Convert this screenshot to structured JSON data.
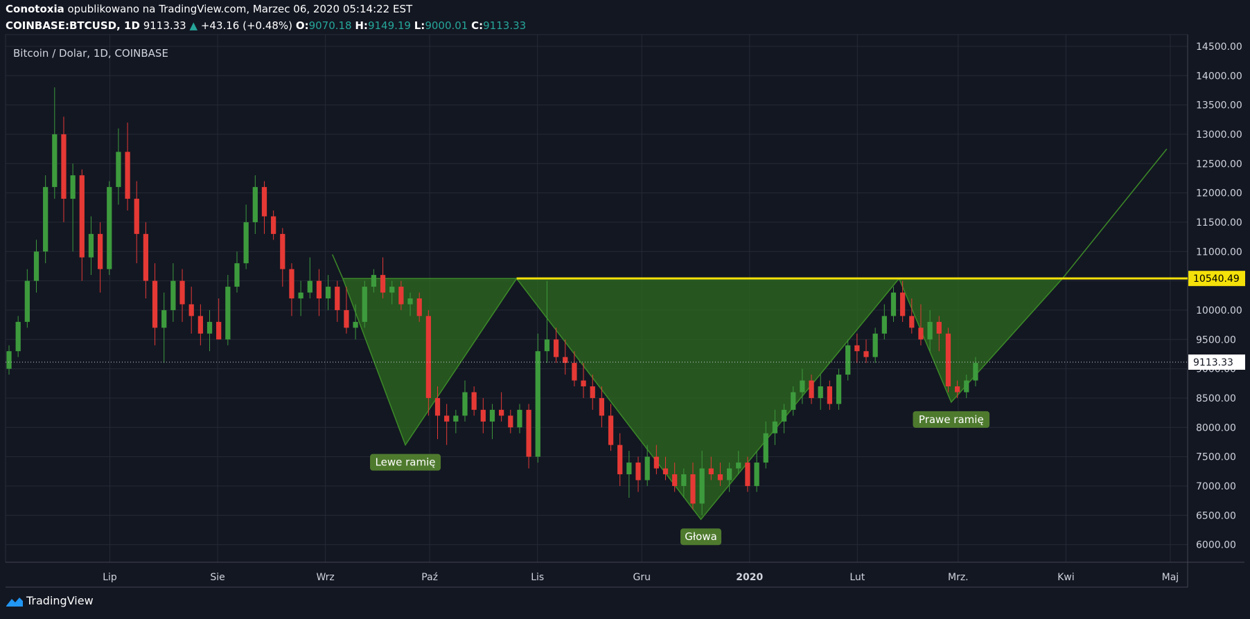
{
  "header": {
    "author": "Conotoxia",
    "published_text": "opublikowano na TradingView.com, Marzec 06, 2020 05:14:22 EST",
    "symbol": "COINBASE:BTCUSD, 1D",
    "last": "9113.33",
    "change_arrow": "▲",
    "change": "+43.16 (+0.48%)",
    "o_label": "O:",
    "o": "9070.18",
    "h_label": "H:",
    "h": "9149.19",
    "l_label": "L:",
    "l": "9000.01",
    "c_label": "C:",
    "c": "9113.33"
  },
  "brand": {
    "name": "TradingView",
    "icon": "tradingview-logo-icon"
  },
  "colors": {
    "background": "#131722",
    "up": "#26a69a",
    "candle_up": "#3d9b3d",
    "candle_down": "#e53935",
    "pattern_fill": "#2e6b1f",
    "neckline": "#f5e10a",
    "label_bg": "#4e7a2e"
  },
  "chart_data": {
    "type": "candlestick",
    "title": "Bitcoin / Dolar, 1D, COINBASE",
    "x_ticks": [
      "Lip",
      "Sie",
      "Wrz",
      "Paź",
      "Lis",
      "Gru",
      "2020",
      "Lut",
      "Mrz.",
      "Kwi",
      "Maj"
    ],
    "y_ticks": [
      "14500.00",
      "14000.00",
      "13500.00",
      "13000.00",
      "12500.00",
      "12000.00",
      "11500.00",
      "11000.00",
      "10500.00",
      "10000.00",
      "9500.00",
      "9000.00",
      "8500.00",
      "8000.00",
      "7500.00",
      "7000.00",
      "6500.00",
      "6000.00"
    ],
    "ylim": [
      5700,
      14700
    ],
    "x_range": [
      "2019-06-01",
      "2020-05-06"
    ],
    "grid": true,
    "price_tags": [
      {
        "label": "10540.49",
        "value": 10540.49,
        "style": "neckline"
      },
      {
        "label": "9113.33",
        "value": 9113.33,
        "style": "last"
      }
    ],
    "pattern": {
      "name": "inverse head and shoulders",
      "labels": [
        {
          "text": "Lewe ramię",
          "date": "2019-09-24",
          "value": 7700
        },
        {
          "text": "Głowa",
          "date": "2019-12-18",
          "value": 6430
        },
        {
          "text": "Prawe ramię",
          "date": "2020-02-28",
          "value": 8430
        }
      ],
      "points": [
        {
          "date": "2019-09-03",
          "value": 10950
        },
        {
          "date": "2019-09-06",
          "value": 10540
        },
        {
          "date": "2019-09-24",
          "value": 7700
        },
        {
          "date": "2019-10-26",
          "value": 10540
        },
        {
          "date": "2019-12-18",
          "value": 6430
        },
        {
          "date": "2020-02-13",
          "value": 10540
        },
        {
          "date": "2020-02-28",
          "value": 8430
        },
        {
          "date": "2020-03-31",
          "value": 10540
        },
        {
          "date": "2020-04-30",
          "value": 12750
        }
      ]
    },
    "series": [
      {
        "type": "candles",
        "ohlc": [
          [
            9000,
            9400,
            8900,
            9300
          ],
          [
            9300,
            9900,
            9200,
            9800
          ],
          [
            9800,
            10700,
            9700,
            10500
          ],
          [
            10500,
            11200,
            10300,
            11000
          ],
          [
            11000,
            12300,
            10800,
            12100
          ],
          [
            12100,
            13800,
            11900,
            13000
          ],
          [
            13000,
            13300,
            11500,
            11900
          ],
          [
            11900,
            12500,
            11000,
            12300
          ],
          [
            12300,
            12400,
            10500,
            10900
          ],
          [
            10900,
            11600,
            10600,
            11300
          ],
          [
            11300,
            11500,
            10300,
            10700
          ],
          [
            10700,
            12200,
            10600,
            12100
          ],
          [
            12100,
            13100,
            11800,
            12700
          ],
          [
            12700,
            13200,
            11700,
            11900
          ],
          [
            11900,
            12200,
            10800,
            11300
          ],
          [
            11300,
            11500,
            10200,
            10500
          ],
          [
            10500,
            10800,
            9400,
            9700
          ],
          [
            9700,
            10300,
            9100,
            10000
          ],
          [
            10000,
            10800,
            9800,
            10500
          ],
          [
            10500,
            10700,
            9800,
            10100
          ],
          [
            10100,
            10400,
            9600,
            9900
          ],
          [
            9900,
            10100,
            9400,
            9600
          ],
          [
            9600,
            10000,
            9300,
            9800
          ],
          [
            9800,
            10200,
            9500,
            9500
          ],
          [
            9500,
            10600,
            9400,
            10400
          ],
          [
            10400,
            11000,
            10300,
            10800
          ],
          [
            10800,
            11800,
            10700,
            11500
          ],
          [
            11500,
            12300,
            11300,
            12100
          ],
          [
            12100,
            12200,
            11300,
            11600
          ],
          [
            11600,
            11700,
            11200,
            11300
          ],
          [
            11300,
            11400,
            10400,
            10700
          ],
          [
            10700,
            10800,
            9900,
            10200
          ],
          [
            10200,
            10500,
            9900,
            10300
          ],
          [
            10300,
            10900,
            10200,
            10500
          ],
          [
            10500,
            10700,
            9900,
            10200
          ],
          [
            10200,
            10600,
            10000,
            10400
          ],
          [
            10400,
            10500,
            9800,
            10000
          ],
          [
            10000,
            10400,
            9600,
            9700
          ],
          [
            9700,
            10100,
            9500,
            9800
          ],
          [
            9800,
            10500,
            9700,
            10400
          ],
          [
            10400,
            10700,
            10300,
            10600
          ],
          [
            10600,
            10900,
            10200,
            10300
          ],
          [
            10300,
            10500,
            10100,
            10400
          ],
          [
            10400,
            10500,
            10000,
            10100
          ],
          [
            10100,
            10300,
            9900,
            10200
          ],
          [
            10200,
            10300,
            9800,
            9900
          ],
          [
            9900,
            10000,
            8200,
            8500
          ],
          [
            8500,
            8700,
            7800,
            8200
          ],
          [
            8200,
            8400,
            7700,
            8100
          ],
          [
            8100,
            8300,
            7900,
            8200
          ],
          [
            8200,
            8800,
            8100,
            8600
          ],
          [
            8600,
            8700,
            8200,
            8300
          ],
          [
            8300,
            8500,
            7900,
            8100
          ],
          [
            8100,
            8400,
            7800,
            8300
          ],
          [
            8300,
            8600,
            8100,
            8200
          ],
          [
            8200,
            8300,
            7900,
            8000
          ],
          [
            8000,
            8400,
            7900,
            8300
          ],
          [
            8300,
            8400,
            7300,
            7500
          ],
          [
            7500,
            9600,
            7400,
            9300
          ],
          [
            9300,
            10500,
            9100,
            9500
          ],
          [
            9500,
            9700,
            9100,
            9200
          ],
          [
            9200,
            9500,
            8900,
            9100
          ],
          [
            9100,
            9300,
            8700,
            8800
          ],
          [
            8800,
            9100,
            8500,
            8700
          ],
          [
            8700,
            8900,
            8300,
            8500
          ],
          [
            8500,
            8700,
            8000,
            8200
          ],
          [
            8200,
            8400,
            7600,
            7700
          ],
          [
            7700,
            7900,
            7000,
            7200
          ],
          [
            7200,
            7600,
            6800,
            7400
          ],
          [
            7400,
            7500,
            6900,
            7100
          ],
          [
            7100,
            7700,
            7000,
            7500
          ],
          [
            7500,
            7700,
            7200,
            7300
          ],
          [
            7300,
            7500,
            7100,
            7200
          ],
          [
            7200,
            7400,
            6900,
            7000
          ],
          [
            7000,
            7300,
            6800,
            7200
          ],
          [
            7200,
            7400,
            6600,
            6700
          ],
          [
            6700,
            7600,
            6500,
            7300
          ],
          [
            7300,
            7500,
            7100,
            7200
          ],
          [
            7200,
            7400,
            7000,
            7100
          ],
          [
            7100,
            7400,
            6900,
            7300
          ],
          [
            7300,
            7600,
            7200,
            7400
          ],
          [
            7400,
            7500,
            6900,
            7000
          ],
          [
            7000,
            7600,
            6900,
            7400
          ],
          [
            7400,
            8100,
            7300,
            7900
          ],
          [
            7900,
            8300,
            7700,
            8100
          ],
          [
            8100,
            8400,
            7900,
            8300
          ],
          [
            8300,
            8700,
            8200,
            8600
          ],
          [
            8600,
            9000,
            8400,
            8800
          ],
          [
            8800,
            8900,
            8400,
            8500
          ],
          [
            8500,
            8900,
            8300,
            8700
          ],
          [
            8700,
            8800,
            8300,
            8400
          ],
          [
            8400,
            9000,
            8300,
            8900
          ],
          [
            8900,
            9500,
            8800,
            9400
          ],
          [
            9400,
            9600,
            9100,
            9300
          ],
          [
            9300,
            9500,
            9100,
            9200
          ],
          [
            9200,
            9700,
            9100,
            9600
          ],
          [
            9600,
            10100,
            9500,
            9900
          ],
          [
            9900,
            10400,
            9800,
            10300
          ],
          [
            10300,
            10500,
            9800,
            9900
          ],
          [
            9900,
            10200,
            9600,
            9700
          ],
          [
            9700,
            10100,
            9400,
            9500
          ],
          [
            9500,
            10000,
            9300,
            9800
          ],
          [
            9800,
            9900,
            9300,
            9600
          ],
          [
            9600,
            9700,
            8600,
            8700
          ],
          [
            8700,
            8800,
            8500,
            8600
          ],
          [
            8600,
            8900,
            8500,
            8800
          ],
          [
            8800,
            9200,
            8700,
            9100
          ]
        ]
      }
    ]
  }
}
